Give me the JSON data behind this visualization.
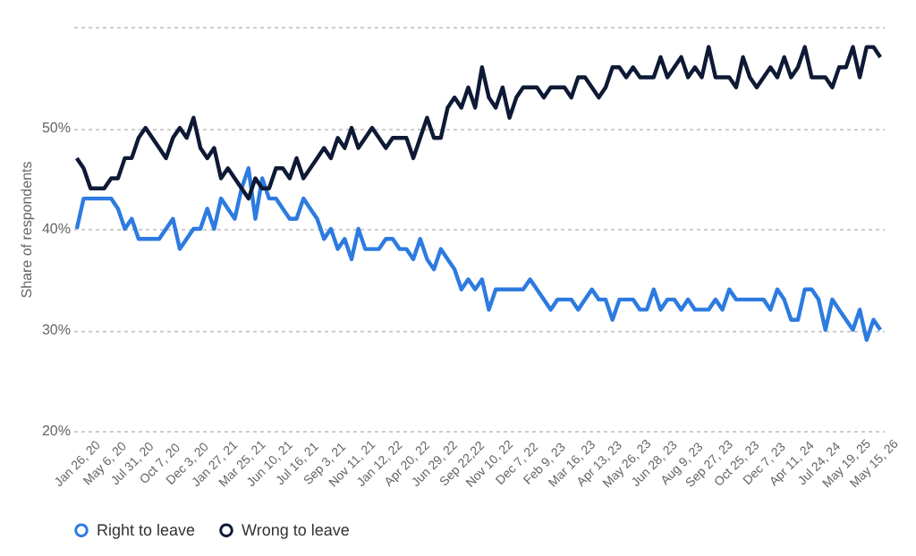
{
  "chart_data": {
    "type": "line",
    "ylabel": "Share of respondents",
    "categories": [
      "Jan 26, 20",
      null,
      null,
      null,
      "May 6, 20",
      null,
      null,
      null,
      "Jul 31, 20",
      null,
      null,
      null,
      "Oct 7, 20",
      null,
      null,
      null,
      "Dec 3, 20",
      null,
      null,
      null,
      "Jan 27, 21",
      null,
      null,
      null,
      "Mar 25, 21",
      null,
      null,
      null,
      "Jun 10, 21",
      null,
      null,
      null,
      "Jul 16, 21",
      null,
      null,
      null,
      "Sep 3, 21",
      null,
      null,
      null,
      "Nov 11, 21",
      null,
      null,
      null,
      "Jan 12, 22",
      null,
      null,
      null,
      "Apr 20, 22",
      null,
      null,
      null,
      "Jun 29, 22",
      null,
      null,
      null,
      "Sep 22,22",
      null,
      null,
      null,
      "Nov 10, 22",
      null,
      null,
      null,
      "Dec 7, 22",
      null,
      null,
      null,
      "Feb 9, 23",
      null,
      null,
      null,
      "Mar 16, 23",
      null,
      null,
      null,
      "Apr 13, 23",
      null,
      null,
      null,
      "May 26, 23",
      null,
      null,
      null,
      "Jun 28, 23",
      null,
      null,
      null,
      "Aug 9, 23",
      null,
      null,
      null,
      "Sep 27, 23",
      null,
      null,
      null,
      "Oct 25, 23",
      null,
      null,
      null,
      "Dec 7, 23",
      null,
      null,
      null,
      "Apr 11, 24",
      null,
      null,
      null,
      "Jul 24, 24",
      null,
      null,
      null,
      "May 19, 25",
      null,
      null,
      null,
      "May 15, 26",
      null
    ],
    "series": [
      {
        "name": "Right to leave",
        "color": "#2d7be0",
        "values": [
          40,
          43,
          43,
          43,
          43,
          43,
          42,
          40,
          41,
          39,
          39,
          39,
          39,
          40,
          41,
          38,
          39,
          40,
          40,
          42,
          40,
          43,
          42,
          41,
          44,
          46,
          41,
          45,
          43,
          43,
          42,
          41,
          41,
          43,
          42,
          41,
          39,
          40,
          38,
          39,
          37,
          40,
          38,
          38,
          38,
          39,
          39,
          38,
          38,
          37,
          39,
          37,
          36,
          38,
          37,
          36,
          34,
          35,
          34,
          35,
          32,
          34,
          34,
          34,
          34,
          34,
          35,
          34,
          33,
          32,
          33,
          33,
          33,
          32,
          33,
          34,
          33,
          33,
          31,
          33,
          33,
          33,
          32,
          32,
          34,
          32,
          33,
          33,
          32,
          33,
          32,
          32,
          32,
          33,
          32,
          34,
          33,
          33,
          33,
          33,
          33,
          32,
          34,
          33,
          31,
          31,
          34,
          34,
          33,
          30,
          33,
          32,
          31,
          30,
          32,
          29,
          31,
          30
        ]
      },
      {
        "name": "Wrong to leave",
        "color": "#0e1a35",
        "values": [
          47,
          46,
          44,
          44,
          44,
          45,
          45,
          47,
          47,
          49,
          50,
          49,
          48,
          47,
          49,
          50,
          49,
          51,
          48,
          47,
          48,
          45,
          46,
          45,
          44,
          43,
          45,
          44,
          44,
          46,
          46,
          45,
          47,
          45,
          46,
          47,
          48,
          47,
          49,
          48,
          50,
          48,
          49,
          50,
          49,
          48,
          49,
          49,
          49,
          47,
          49,
          51,
          49,
          49,
          52,
          53,
          52,
          54,
          52,
          56,
          53,
          52,
          54,
          51,
          53,
          54,
          54,
          54,
          53,
          54,
          54,
          54,
          53,
          55,
          55,
          54,
          53,
          54,
          56,
          56,
          55,
          56,
          55,
          55,
          55,
          57,
          55,
          56,
          57,
          55,
          56,
          55,
          58,
          55,
          55,
          55,
          54,
          57,
          55,
          54,
          55,
          56,
          55,
          57,
          55,
          56,
          58,
          55,
          55,
          55,
          54,
          56,
          56,
          58,
          55,
          58,
          58,
          57
        ]
      }
    ],
    "ylim": [
      20,
      60
    ],
    "yticks": [
      {
        "value": 20,
        "label": "20%"
      },
      {
        "value": 30,
        "label": "30%"
      },
      {
        "value": 40,
        "label": "40%"
      },
      {
        "value": 50,
        "label": "50%"
      },
      {
        "value": 60,
        "label": null
      }
    ],
    "grid": "y",
    "legend": "bottom",
    "marker": "none",
    "line_style": "solid"
  }
}
